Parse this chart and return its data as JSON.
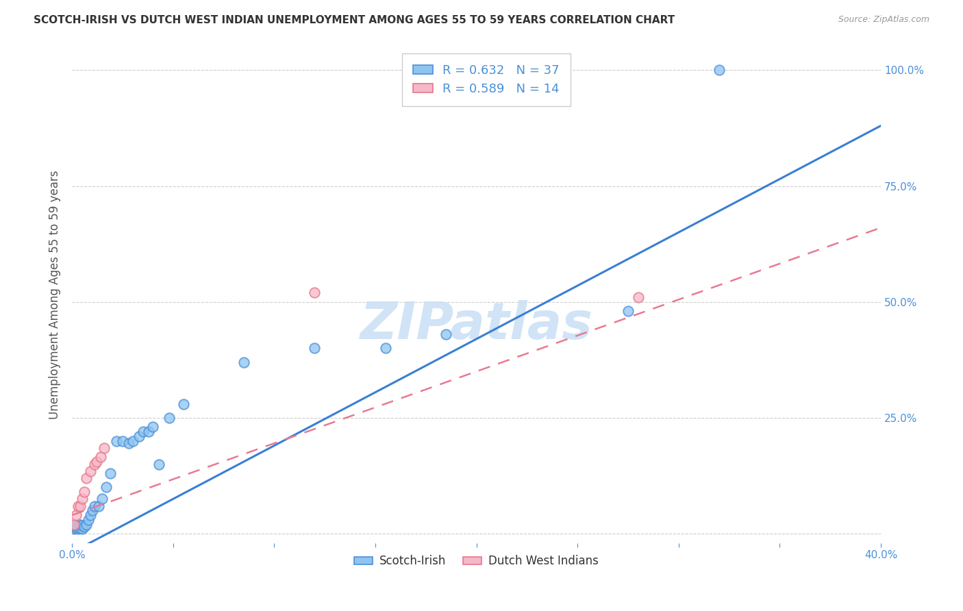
{
  "title": "SCOTCH-IRISH VS DUTCH WEST INDIAN UNEMPLOYMENT AMONG AGES 55 TO 59 YEARS CORRELATION CHART",
  "source": "Source: ZipAtlas.com",
  "ylabel": "Unemployment Among Ages 55 to 59 years",
  "xlim": [
    0.0,
    0.4
  ],
  "ylim": [
    -0.02,
    1.05
  ],
  "xtick_positions": [
    0.0,
    0.05,
    0.1,
    0.15,
    0.2,
    0.25,
    0.3,
    0.35,
    0.4
  ],
  "xticklabels": [
    "0.0%",
    "",
    "",
    "",
    "",
    "",
    "",
    "",
    "40.0%"
  ],
  "ytick_positions": [
    0.0,
    0.25,
    0.5,
    0.75,
    1.0
  ],
  "yticklabels_right": [
    "",
    "25.0%",
    "50.0%",
    "75.0%",
    "100.0%"
  ],
  "grid_color": "#cccccc",
  "background_color": "#ffffff",
  "scotch_irish_fill": "#8ec4f0",
  "dutch_wi_fill": "#f5b8c8",
  "scotch_irish_edge": "#4a90d9",
  "dutch_wi_edge": "#e8758a",
  "scotch_irish_line_color": "#3a7fd4",
  "dutch_wi_line_color": "#e87a90",
  "tick_label_color": "#4a90d9",
  "title_color": "#333333",
  "ylabel_color": "#555555",
  "watermark": "ZIPatlas",
  "watermark_color": "#cce0f5",
  "legend_text_color": "#4a90d9",
  "scotch_irish_x": [
    0.001,
    0.001,
    0.002,
    0.002,
    0.003,
    0.003,
    0.004,
    0.004,
    0.005,
    0.005,
    0.006,
    0.007,
    0.008,
    0.009,
    0.01,
    0.011,
    0.013,
    0.015,
    0.017,
    0.019,
    0.022,
    0.025,
    0.028,
    0.03,
    0.033,
    0.035,
    0.038,
    0.04,
    0.043,
    0.048,
    0.055,
    0.085,
    0.12,
    0.155,
    0.185,
    0.275,
    0.32
  ],
  "scotch_irish_y": [
    0.01,
    0.015,
    0.012,
    0.018,
    0.01,
    0.015,
    0.012,
    0.02,
    0.01,
    0.018,
    0.015,
    0.02,
    0.03,
    0.04,
    0.05,
    0.06,
    0.06,
    0.075,
    0.1,
    0.13,
    0.2,
    0.2,
    0.195,
    0.2,
    0.21,
    0.22,
    0.22,
    0.23,
    0.15,
    0.25,
    0.28,
    0.37,
    0.4,
    0.4,
    0.43,
    0.48,
    1.0
  ],
  "dutch_wi_x": [
    0.001,
    0.002,
    0.003,
    0.004,
    0.005,
    0.006,
    0.007,
    0.009,
    0.011,
    0.012,
    0.014,
    0.016,
    0.12,
    0.28
  ],
  "dutch_wi_y": [
    0.02,
    0.04,
    0.06,
    0.06,
    0.075,
    0.09,
    0.12,
    0.135,
    0.15,
    0.155,
    0.165,
    0.185,
    0.52,
    0.51
  ],
  "scotch_line_x0": 0.0,
  "scotch_line_x1": 0.4,
  "scotch_line_y0": -0.04,
  "scotch_line_y1": 0.88,
  "dutch_line_x0": 0.0,
  "dutch_line_x1": 0.4,
  "dutch_line_y0": 0.04,
  "dutch_line_y1": 0.66
}
